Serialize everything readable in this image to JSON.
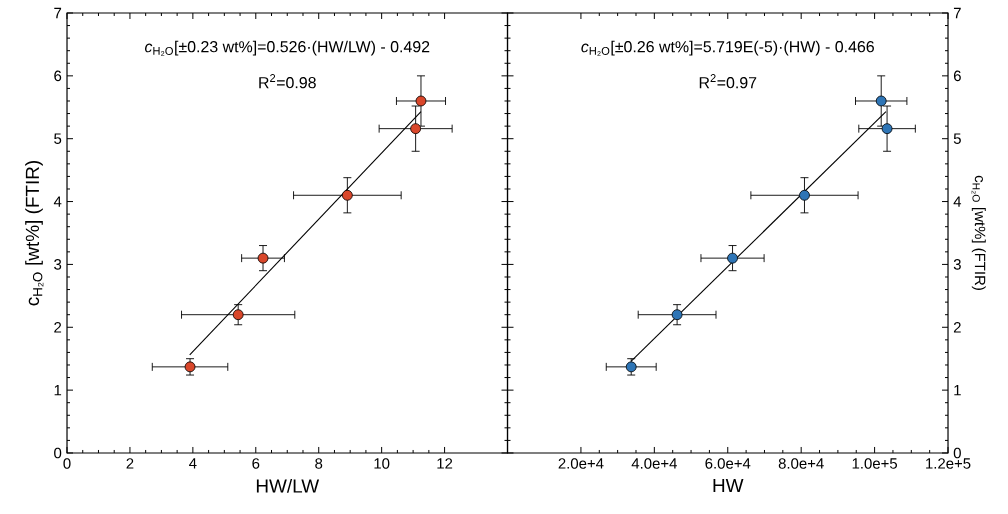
{
  "chart_data": [
    {
      "type": "scatter",
      "xlabel": "HW/LW",
      "ylabel": "c$_{H₂O}$ [wt%] (FTIR)",
      "marker": "circle",
      "annotations": [
        "*c*$_{H₂O}$[±0.23 wt%]=0.526·(HW/LW) - 0.492",
        "R$^{2}$=0.98"
      ],
      "xlim": [
        0,
        14
      ],
      "xticks": [
        0,
        2,
        4,
        6,
        8,
        10,
        12
      ],
      "ylim": [
        0,
        7
      ],
      "yticks": [
        0,
        1,
        2,
        3,
        4,
        5,
        6,
        7
      ],
      "series": [
        {
          "color": "#d9472b",
          "x": [
            3.91,
            5.44,
            6.23,
            8.91,
            11.08,
            11.25
          ],
          "values": [
            1.37,
            2.2,
            3.1,
            4.1,
            5.16,
            5.6
          ],
          "errors": [
            0.13,
            0.16,
            0.2,
            0.28,
            0.36,
            0.4
          ],
          "xerrors": [
            1.2,
            1.8,
            0.68,
            1.71,
            1.16,
            0.78
          ]
        },
        {
          "type": "line",
          "color": "#000000",
          "marker": "none",
          "line_style": "solid",
          "x": [
            3.9,
            11.25
          ],
          "values": [
            1.56,
            5.43
          ]
        }
      ]
    },
    {
      "type": "scatter",
      "xlabel": "HW",
      "y2label": "c$_{H₂O}$ [wt%] (FTIR)",
      "marker": "circle",
      "annotations": [
        "*c*$_{H₂O}$[±0.26 wt%]=5.719E(-5)·(HW) - 0.466",
        "R$^{2}$=0.97"
      ],
      "xlim": [
        0,
        120000
      ],
      "xticks": [
        {
          "value": 20000,
          "label": "2.0e+4"
        },
        {
          "value": 40000,
          "label": "4.0e+4"
        },
        {
          "value": 60000,
          "label": "6.0e+4"
        },
        {
          "value": 80000,
          "label": "8.0e+4"
        },
        {
          "value": 100000,
          "label": "1.0e+5"
        },
        {
          "value": 120000,
          "label": "1.2e+5"
        }
      ],
      "y2lim": [
        0,
        7
      ],
      "y2ticks": [
        0,
        1,
        2,
        3,
        4,
        5,
        6,
        7
      ],
      "series": [
        {
          "color": "#2e75b6",
          "axis": "y2",
          "x": [
            33700,
            46200,
            61300,
            80900,
            103400,
            101800
          ],
          "values": [
            1.37,
            2.2,
            3.1,
            4.1,
            5.16,
            5.6
          ],
          "errors": [
            0.13,
            0.16,
            0.2,
            0.28,
            0.36,
            0.4
          ],
          "xerrors": [
            6800,
            10600,
            8600,
            14600,
            7700,
            7000
          ]
        },
        {
          "type": "line",
          "axis": "y2",
          "color": "#000000",
          "marker": "none",
          "line_style": "solid",
          "x": [
            33700,
            103100
          ],
          "values": [
            1.46,
            5.43
          ]
        }
      ]
    }
  ]
}
